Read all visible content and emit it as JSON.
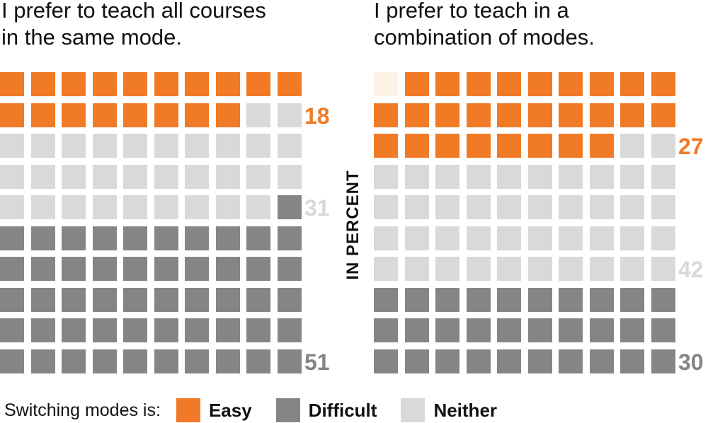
{
  "chart_data": [
    {
      "type": "waffle",
      "title": "I prefer to teach all courses\nin the same mode.",
      "series": [
        {
          "name": "Easy",
          "value": 18
        },
        {
          "name": "Neither",
          "value": 31
        },
        {
          "name": "Difficult",
          "value": 51
        }
      ]
    },
    {
      "type": "waffle",
      "title": "I prefer to teach in a\ncombination of modes.",
      "series": [
        {
          "name": "Easy",
          "value": 27
        },
        {
          "name": "Neither",
          "value": 42
        },
        {
          "name": "Difficult",
          "value": 30
        }
      ]
    }
  ],
  "y_axis_label": "IN PERCENT",
  "legend": {
    "prefix": "Switching modes is:",
    "items": [
      {
        "name": "Easy",
        "color": "#f07a26"
      },
      {
        "name": "Difficult",
        "color": "#858585"
      },
      {
        "name": "Neither",
        "color": "#d9d9d9"
      }
    ]
  },
  "colors": {
    "Easy": "#f07a26",
    "Difficult": "#858585",
    "Neither": "#d9d9d9",
    "empty": "#fdf3e7"
  },
  "label_colors": {
    "Easy": "#f07a26",
    "Difficult": "#858585",
    "Neither": "#d9d9d9"
  }
}
